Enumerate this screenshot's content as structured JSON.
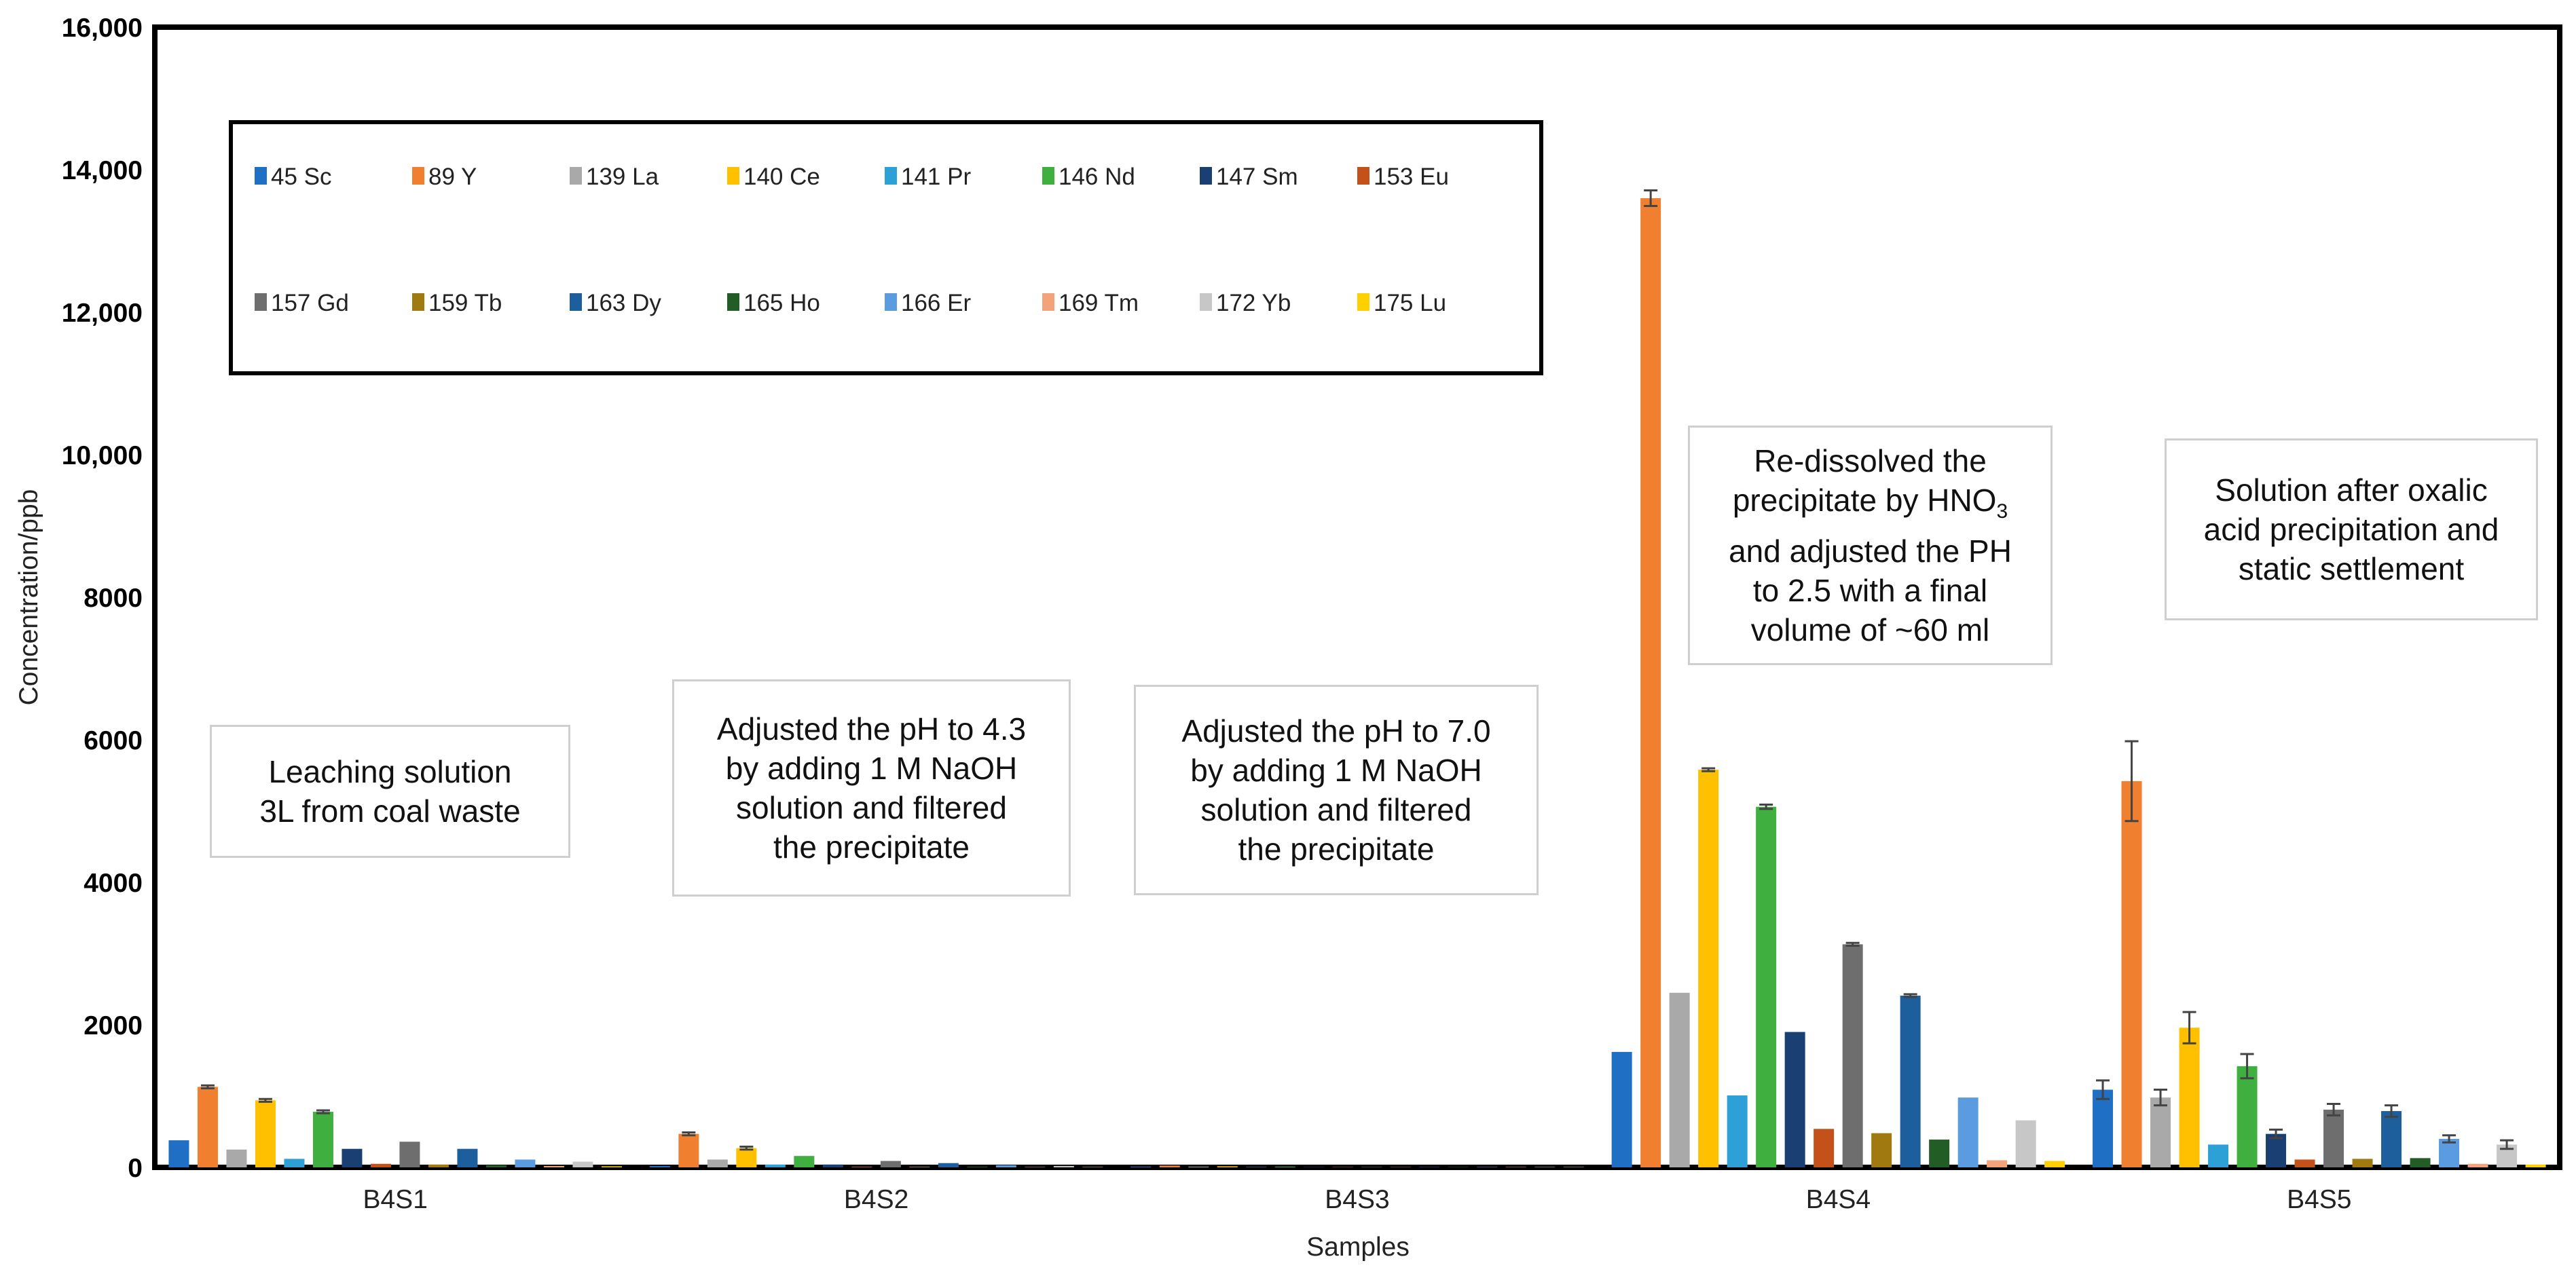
{
  "chart_data": {
    "type": "bar",
    "title": "",
    "xlabel": "Samples",
    "ylabel": "Concentration/ppb",
    "ylim": [
      0,
      16000
    ],
    "yticks": [
      0,
      2000,
      4000,
      6000,
      8000,
      10000,
      12000,
      14000,
      16000
    ],
    "ytick_labels": [
      "0",
      "2000",
      "4000",
      "6000",
      "8000",
      "10,000",
      "12,000",
      "14,000",
      "16,000"
    ],
    "categories": [
      "B4S1",
      "B4S2",
      "B4S3",
      "B4S4",
      "B4S5"
    ],
    "grid": false,
    "legend_position": "top-left",
    "series": [
      {
        "name": "45 Sc",
        "color": "#1f6fc5",
        "values": [
          380,
          20,
          10,
          1620,
          1090
        ],
        "errors": [
          0,
          0,
          0,
          0,
          130
        ]
      },
      {
        "name": "89  Y",
        "color": "#f07f2f",
        "values": [
          1130,
          470,
          25,
          13600,
          5420
        ],
        "errors": [
          20,
          20,
          0,
          110,
          560
        ]
      },
      {
        "name": "139  La",
        "color": "#a9a9a9",
        "values": [
          250,
          110,
          10,
          2450,
          980
        ],
        "errors": [
          0,
          0,
          0,
          0,
          110
        ]
      },
      {
        "name": "140  Ce",
        "color": "#ffc000",
        "values": [
          940,
          270,
          15,
          5580,
          1960
        ],
        "errors": [
          20,
          20,
          0,
          20,
          220
        ]
      },
      {
        "name": "141  Pr",
        "color": "#2ea0d8",
        "values": [
          120,
          40,
          5,
          1010,
          320
        ],
        "errors": [
          0,
          0,
          0,
          0,
          0
        ]
      },
      {
        "name": "146  Nd",
        "color": "#3fb03f",
        "values": [
          780,
          160,
          10,
          5060,
          1420
        ],
        "errors": [
          20,
          0,
          0,
          30,
          170
        ]
      },
      {
        "name": "147  Sm",
        "color": "#193f73",
        "values": [
          260,
          40,
          5,
          1900,
          470
        ],
        "errors": [
          0,
          0,
          0,
          0,
          60
        ]
      },
      {
        "name": "153  Eu",
        "color": "#c4501a",
        "values": [
          50,
          10,
          5,
          540,
          110
        ],
        "errors": [
          0,
          0,
          0,
          0,
          0
        ]
      },
      {
        "name": "157  Gd",
        "color": "#6e6e6e",
        "values": [
          360,
          90,
          5,
          3130,
          810
        ],
        "errors": [
          0,
          0,
          0,
          20,
          80
        ]
      },
      {
        "name": "159  Tb",
        "color": "#a07a10",
        "values": [
          40,
          10,
          3,
          480,
          120
        ],
        "errors": [
          0,
          0,
          0,
          0,
          0
        ]
      },
      {
        "name": "163  Dy",
        "color": "#1d5f9c",
        "values": [
          260,
          60,
          5,
          2410,
          790
        ],
        "errors": [
          0,
          0,
          0,
          20,
          80
        ]
      },
      {
        "name": "165  Ho",
        "color": "#215d24",
        "values": [
          30,
          10,
          2,
          390,
          130
        ],
        "errors": [
          0,
          0,
          0,
          0,
          0
        ]
      },
      {
        "name": "166  Er",
        "color": "#5b9be0",
        "values": [
          110,
          30,
          5,
          980,
          400
        ],
        "errors": [
          0,
          0,
          0,
          0,
          50
        ]
      },
      {
        "name": "169  Tm",
        "color": "#f3a27a",
        "values": [
          20,
          5,
          2,
          100,
          50
        ],
        "errors": [
          0,
          0,
          0,
          0,
          0
        ]
      },
      {
        "name": "172  Yb",
        "color": "#c7c7c7",
        "values": [
          80,
          20,
          5,
          660,
          320
        ],
        "errors": [
          0,
          0,
          0,
          0,
          60
        ]
      },
      {
        "name": "175  Lu",
        "color": "#ffd000",
        "values": [
          15,
          5,
          2,
          90,
          40
        ],
        "errors": [
          0,
          0,
          0,
          0,
          0
        ]
      }
    ]
  },
  "annotations": {
    "b4s1": {
      "lines": [
        "Leaching solution",
        "3L from coal waste"
      ]
    },
    "b4s2": {
      "lines": [
        "Adjusted the pH to 4.3",
        "by adding 1 M NaOH",
        "solution and filtered",
        "the precipitate"
      ]
    },
    "b4s3": {
      "lines": [
        "Adjusted the pH to 7.0",
        "by adding 1 M NaOH",
        "solution and filtered",
        "the precipitate"
      ]
    },
    "b4s4": {
      "line1": "Re-dissolved the",
      "line2_prefix": "precipitate by HNO",
      "line2_sub": "3",
      "line3": "and adjusted the PH",
      "line4": "to 2.5 with a final",
      "line5": "volume of ~60 ml"
    },
    "b4s5": {
      "lines": [
        "Solution after oxalic",
        "acid precipitation and",
        "static settlement"
      ]
    }
  }
}
